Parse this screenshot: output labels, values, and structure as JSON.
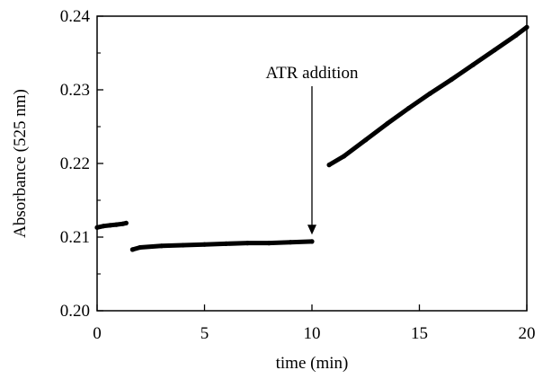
{
  "chart_data": {
    "type": "line",
    "title": "",
    "xlabel": "time (min)",
    "ylabel": "Absorbance  (525 nm)",
    "xlim": [
      0,
      20
    ],
    "ylim": [
      0.2,
      0.24
    ],
    "x_ticks": [
      "0",
      "5",
      "10",
      "15",
      "20"
    ],
    "y_ticks": [
      "0.20",
      "0.21",
      "0.22",
      "0.23",
      "0.24"
    ],
    "grid": false,
    "legend": "none",
    "line_color": "#000000",
    "series": [
      {
        "segment": 1,
        "x": [
          0.0,
          0.3,
          0.6,
          0.9,
          1.2,
          1.35
        ],
        "y": [
          0.2113,
          0.2115,
          0.2116,
          0.2117,
          0.2118,
          0.2119
        ]
      },
      {
        "segment": 2,
        "x": [
          1.65,
          2.0,
          3.0,
          4.0,
          5.0,
          6.0,
          7.0,
          8.0,
          9.0,
          10.0
        ],
        "y": [
          0.2083,
          0.2086,
          0.2088,
          0.2089,
          0.209,
          0.2091,
          0.2092,
          0.2092,
          0.2093,
          0.2094
        ]
      },
      {
        "segment": 3,
        "x": [
          10.8,
          11.5,
          12.5,
          13.5,
          14.5,
          15.5,
          16.5,
          17.5,
          18.5,
          19.5,
          20.0
        ],
        "y": [
          0.2198,
          0.221,
          0.2232,
          0.2254,
          0.2275,
          0.2295,
          0.2314,
          0.2334,
          0.2354,
          0.2374,
          0.2385
        ]
      }
    ],
    "annotations": [
      {
        "text": "ATR addition",
        "x": 10.0,
        "y": 0.2096,
        "arrow": "down"
      }
    ]
  }
}
